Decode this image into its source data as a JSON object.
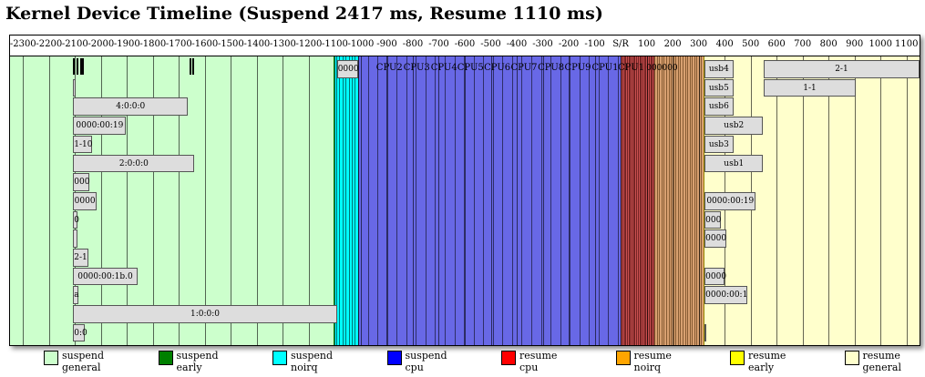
{
  "title": "Kernel Device Timeline (Suspend 2417 ms, Resume 1110 ms)",
  "chart_data": {
    "type": "timeline",
    "axis": {
      "min": -2350,
      "max": 1150,
      "ticks": [
        -2300,
        -2200,
        -2100,
        -2000,
        -1900,
        -1800,
        -1700,
        -1600,
        -1500,
        -1400,
        -1300,
        -1200,
        -1100,
        -1000,
        -900,
        -800,
        -700,
        -600,
        -500,
        -400,
        -300,
        -200,
        -100,
        0,
        100,
        200,
        300,
        400,
        500,
        600,
        700,
        800,
        900,
        1000,
        1100
      ],
      "zero_label": "S/R"
    },
    "phases": [
      {
        "name": "suspend general",
        "start": -2350,
        "end": -1105,
        "color": "#ccffcc"
      },
      {
        "name": "suspend early",
        "start": -1105,
        "end": -1100,
        "color": "#008000"
      },
      {
        "name": "suspend noirq",
        "start": -1100,
        "end": -1010,
        "color": "#00ffff"
      },
      {
        "name": "suspend cpu",
        "start": -1010,
        "end": 0,
        "color": "#0000ff"
      },
      {
        "name": "resume cpu",
        "start": 0,
        "end": 130,
        "color": "#ff0000"
      },
      {
        "name": "resume noirq",
        "start": 130,
        "end": 320,
        "color": "#ffa500"
      },
      {
        "name": "resume early",
        "start": 320,
        "end": 323,
        "color": "#ffff00"
      },
      {
        "name": "resume general",
        "start": 323,
        "end": 1150,
        "color": "#ffffcc"
      }
    ],
    "cpu_labels": [
      {
        "label": "CPU2",
        "at": -890
      },
      {
        "label": "CPU3",
        "at": -785
      },
      {
        "label": "CPU4",
        "at": -680
      },
      {
        "label": "CPU5",
        "at": -578
      },
      {
        "label": "CPU6",
        "at": -475
      },
      {
        "label": "CPU7",
        "at": -372
      },
      {
        "label": "CPU8",
        "at": -268
      },
      {
        "label": "CPU9",
        "at": -165
      },
      {
        "label": "CPU1",
        "at": -60
      },
      {
        "label": "CPU1",
        "at": 40
      }
    ],
    "devices": [
      {
        "label": "0000",
        "start": -1092,
        "end": -1010,
        "row": 0
      },
      {
        "label": "",
        "start": -2107,
        "end": -2098,
        "row": 1
      },
      {
        "label": "4:0:0:0",
        "start": -2107,
        "end": -1665,
        "row": 2
      },
      {
        "label": "0000:00:19",
        "start": -2107,
        "end": -1903,
        "row": 3
      },
      {
        "label": "1-10",
        "start": -2107,
        "end": -2035,
        "row": 4
      },
      {
        "label": "2:0:0:0",
        "start": -2107,
        "end": -1640,
        "row": 5
      },
      {
        "label": "000",
        "start": -2107,
        "end": -2045,
        "row": 6
      },
      {
        "label": "0000",
        "start": -2107,
        "end": -2017,
        "row": 7
      },
      {
        "label": "0",
        "start": -2107,
        "end": -2090,
        "row": 8
      },
      {
        "label": "",
        "start": -2107,
        "end": -2090,
        "row": 9
      },
      {
        "label": "2-1",
        "start": -2107,
        "end": -2050,
        "row": 10
      },
      {
        "label": "0000:00:1b.0",
        "start": -2107,
        "end": -1860,
        "row": 11
      },
      {
        "label": "a",
        "start": -2107,
        "end": -2088,
        "row": 12
      },
      {
        "label": "1:0:0:0",
        "start": -2107,
        "end": -1092,
        "row": 13
      },
      {
        "label": "0:0",
        "start": -2107,
        "end": -2062,
        "row": 14
      },
      {
        "label": "000000",
        "start": 0,
        "end": 318,
        "row": 0
      },
      {
        "label": "usb4",
        "start": 323,
        "end": 433,
        "row": 0
      },
      {
        "label": "2-1",
        "start": 550,
        "end": 1150,
        "row": 0
      },
      {
        "label": "usb5",
        "start": 323,
        "end": 433,
        "row": 1
      },
      {
        "label": "1-1",
        "start": 550,
        "end": 905,
        "row": 1
      },
      {
        "label": "usb6",
        "start": 323,
        "end": 433,
        "row": 2
      },
      {
        "label": "usb2",
        "start": 323,
        "end": 548,
        "row": 3
      },
      {
        "label": "usb3",
        "start": 323,
        "end": 433,
        "row": 4
      },
      {
        "label": "usb1",
        "start": 323,
        "end": 548,
        "row": 5
      },
      {
        "label": "0000:00:19",
        "start": 323,
        "end": 520,
        "row": 7
      },
      {
        "label": "000",
        "start": 323,
        "end": 385,
        "row": 8
      },
      {
        "label": "0000",
        "start": 323,
        "end": 405,
        "row": 9
      },
      {
        "label": "0000",
        "start": 323,
        "end": 398,
        "row": 11
      },
      {
        "label": "0000:00:1",
        "start": 323,
        "end": 488,
        "row": 12
      },
      {
        "label": "",
        "start": 323,
        "end": 328,
        "row": 14
      }
    ],
    "legend": [
      {
        "line1": "suspend",
        "line2": "general",
        "color": "#ccffcc"
      },
      {
        "line1": "suspend",
        "line2": "early",
        "color": "#008000"
      },
      {
        "line1": "suspend",
        "line2": "noirq",
        "color": "#00ffff"
      },
      {
        "line1": "suspend",
        "line2": "cpu",
        "color": "#0000ff"
      },
      {
        "line1": "resume",
        "line2": "cpu",
        "color": "#ff0000"
      },
      {
        "line1": "resume",
        "line2": "noirq",
        "color": "#ffa500"
      },
      {
        "line1": "resume",
        "line2": "early",
        "color": "#ffff00"
      },
      {
        "line1": "resume",
        "line2": "general",
        "color": "#ffffcc"
      }
    ]
  }
}
